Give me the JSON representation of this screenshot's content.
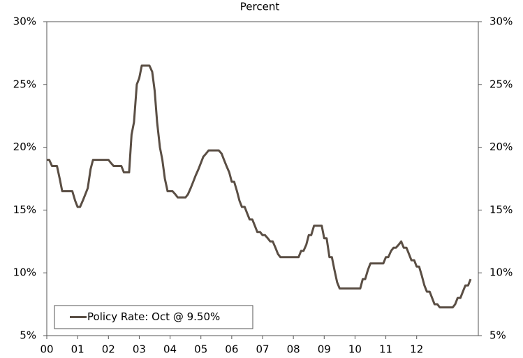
{
  "chart_data": {
    "type": "line",
    "title": "Percent",
    "x": [
      2000,
      2000.08,
      2000.17,
      2000.25,
      2000.33,
      2000.42,
      2000.5,
      2000.58,
      2000.67,
      2000.75,
      2000.83,
      2000.92,
      2001,
      2001.08,
      2001.17,
      2001.25,
      2001.33,
      2001.42,
      2001.5,
      2001.58,
      2001.67,
      2001.75,
      2001.83,
      2001.92,
      2002,
      2002.08,
      2002.17,
      2002.25,
      2002.33,
      2002.42,
      2002.5,
      2002.58,
      2002.67,
      2002.75,
      2002.83,
      2002.92,
      2003,
      2003.08,
      2003.17,
      2003.25,
      2003.33,
      2003.42,
      2003.5,
      2003.58,
      2003.67,
      2003.75,
      2003.83,
      2003.92,
      2004,
      2004.08,
      2004.17,
      2004.25,
      2004.33,
      2004.42,
      2004.5,
      2004.58,
      2004.67,
      2004.75,
      2004.83,
      2004.92,
      2005,
      2005.08,
      2005.17,
      2005.25,
      2005.33,
      2005.42,
      2005.5,
      2005.58,
      2005.67,
      2005.75,
      2005.83,
      2005.92,
      2006,
      2006.08,
      2006.17,
      2006.25,
      2006.33,
      2006.42,
      2006.5,
      2006.58,
      2006.67,
      2006.75,
      2006.83,
      2006.92,
      2007,
      2007.08,
      2007.17,
      2007.25,
      2007.33,
      2007.42,
      2007.5,
      2007.58,
      2007.67,
      2007.75,
      2007.83,
      2007.92,
      2008,
      2008.08,
      2008.17,
      2008.25,
      2008.33,
      2008.42,
      2008.5,
      2008.58,
      2008.67,
      2008.75,
      2008.83,
      2008.92,
      2009,
      2009.08,
      2009.17,
      2009.25,
      2009.33,
      2009.42,
      2009.5,
      2009.58,
      2009.67,
      2009.75,
      2009.83,
      2009.92,
      2010,
      2010.08,
      2010.17,
      2010.25,
      2010.33,
      2010.42,
      2010.5,
      2010.58,
      2010.67,
      2010.75,
      2010.83,
      2010.92,
      2011,
      2011.08,
      2011.17,
      2011.25,
      2011.33,
      2011.42,
      2011.5,
      2011.58,
      2011.67,
      2011.75,
      2011.83,
      2011.92,
      2012,
      2012.08,
      2012.17,
      2012.25,
      2012.33,
      2012.42,
      2012.5,
      2012.58,
      2012.67,
      2012.75,
      2012.83,
      2012.92,
      2013,
      2013.08,
      2013.17,
      2013.25,
      2013.33,
      2013.42,
      2013.5,
      2013.58,
      2013.67,
      2013.75
    ],
    "series": [
      {
        "name": "Policy Rate: Oct @ 9.50%",
        "color": "#5a4e44",
        "values": [
          19,
          19,
          18.5,
          18.5,
          18.5,
          17.5,
          16.5,
          16.5,
          16.5,
          16.5,
          16.5,
          15.75,
          15.25,
          15.25,
          15.75,
          16.25,
          16.75,
          18.25,
          19,
          19,
          19,
          19,
          19,
          19,
          19,
          18.75,
          18.5,
          18.5,
          18.5,
          18.5,
          18,
          18,
          18,
          21,
          22,
          25,
          25.5,
          26.5,
          26.5,
          26.5,
          26.5,
          26,
          24.5,
          22,
          20,
          19,
          17.5,
          16.5,
          16.5,
          16.5,
          16.25,
          16,
          16,
          16,
          16,
          16.25,
          16.75,
          17.25,
          17.75,
          18.25,
          18.75,
          19.25,
          19.5,
          19.75,
          19.75,
          19.75,
          19.75,
          19.75,
          19.5,
          19,
          18.5,
          18,
          17.25,
          17.25,
          16.5,
          15.75,
          15.25,
          15.25,
          14.75,
          14.25,
          14.25,
          13.75,
          13.25,
          13.25,
          13,
          13,
          12.75,
          12.5,
          12.5,
          12,
          11.5,
          11.25,
          11.25,
          11.25,
          11.25,
          11.25,
          11.25,
          11.25,
          11.25,
          11.75,
          11.75,
          12.25,
          13,
          13,
          13.75,
          13.75,
          13.75,
          13.75,
          12.75,
          12.75,
          11.25,
          11.25,
          10.25,
          9.25,
          8.75,
          8.75,
          8.75,
          8.75,
          8.75,
          8.75,
          8.75,
          8.75,
          8.75,
          9.5,
          9.5,
          10.25,
          10.75,
          10.75,
          10.75,
          10.75,
          10.75,
          10.75,
          11.25,
          11.25,
          11.75,
          12,
          12,
          12.25,
          12.5,
          12,
          12,
          11.5,
          11,
          11,
          10.5,
          10.5,
          9.75,
          9,
          8.5,
          8.5,
          8,
          7.5,
          7.5,
          7.25,
          7.25,
          7.25,
          7.25,
          7.25,
          7.25,
          7.5,
          8,
          8,
          8.5,
          9,
          9,
          9.5
        ]
      }
    ],
    "xlim": [
      2000,
      2014
    ],
    "xticks": [
      {
        "value": 2000,
        "label": "00"
      },
      {
        "value": 2001,
        "label": "01"
      },
      {
        "value": 2002,
        "label": "02"
      },
      {
        "value": 2003,
        "label": "03"
      },
      {
        "value": 2004,
        "label": "04"
      },
      {
        "value": 2005,
        "label": "05"
      },
      {
        "value": 2006,
        "label": "06"
      },
      {
        "value": 2007,
        "label": "07"
      },
      {
        "value": 2008,
        "label": "08"
      },
      {
        "value": 2009,
        "label": "09"
      },
      {
        "value": 2010,
        "label": "10"
      },
      {
        "value": 2011,
        "label": "11"
      },
      {
        "value": 2012,
        "label": "12"
      }
    ],
    "ylim": [
      5,
      30
    ],
    "yticks": [
      {
        "value": 5,
        "label": "5%"
      },
      {
        "value": 10,
        "label": "10%"
      },
      {
        "value": 15,
        "label": "15%"
      },
      {
        "value": 20,
        "label": "20%"
      },
      {
        "value": 25,
        "label": "25%"
      },
      {
        "value": 30,
        "label": "30%"
      }
    ],
    "y2lim": [
      5,
      30
    ],
    "y2ticks": [
      {
        "value": 5,
        "label": "5%"
      },
      {
        "value": 10,
        "label": "10%"
      },
      {
        "value": 15,
        "label": "15%"
      },
      {
        "value": 20,
        "label": "20%"
      },
      {
        "value": 25,
        "label": "25%"
      },
      {
        "value": 30,
        "label": "30%"
      }
    ],
    "grid": false,
    "legend": "lower left"
  }
}
